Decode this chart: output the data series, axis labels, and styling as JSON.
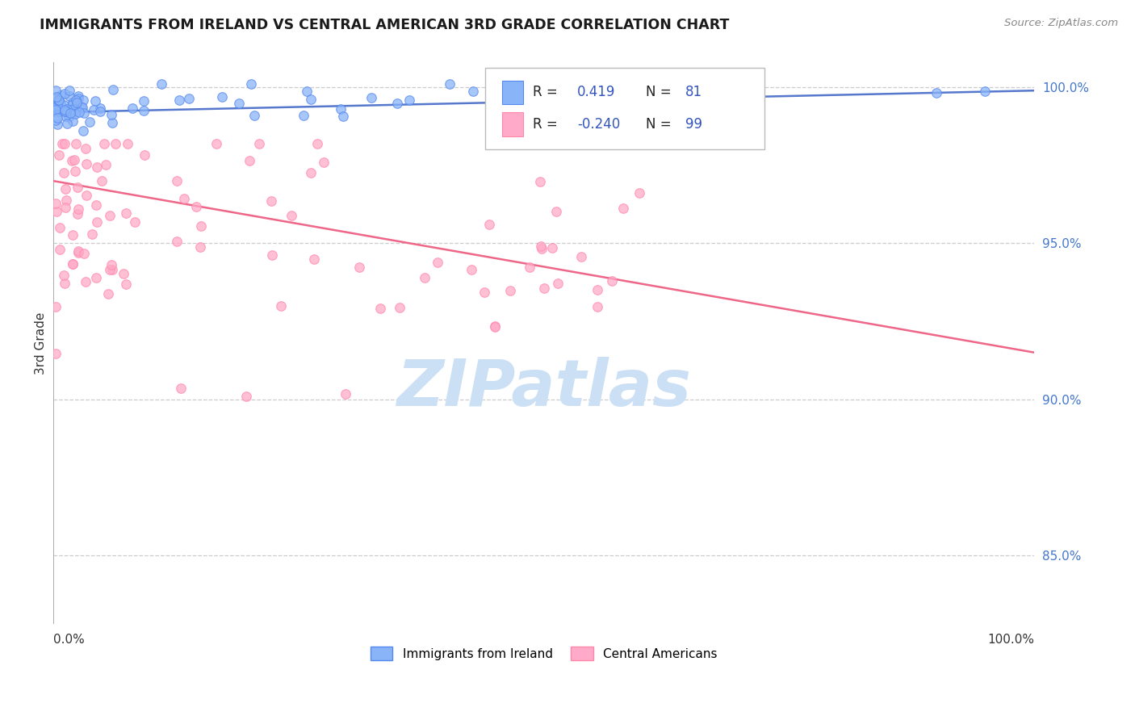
{
  "title": "IMMIGRANTS FROM IRELAND VS CENTRAL AMERICAN 3RD GRADE CORRELATION CHART",
  "source_text": "Source: ZipAtlas.com",
  "ylabel": "3rd Grade",
  "y_tick_labels": [
    "85.0%",
    "90.0%",
    "95.0%",
    "100.0%"
  ],
  "y_tick_values": [
    0.85,
    0.9,
    0.95,
    1.0
  ],
  "x_lim": [
    0.0,
    1.0
  ],
  "y_lim": [
    0.828,
    1.008
  ],
  "color_ireland": "#8ab4f8",
  "color_ireland_edge": "#5588ee",
  "color_central": "#ffaac8",
  "color_central_edge": "#ff88aa",
  "color_trendline_ireland": "#5577cc",
  "color_trendline_central": "#ee6688",
  "color_grid": "#cccccc",
  "color_right_labels": "#4477cc",
  "color_legend_text_dark": "#333333",
  "color_legend_values": "#3355bb",
  "watermark_color": "#cce0f5",
  "ireland_trend_x0": 0.0,
  "ireland_trend_y0": 0.992,
  "ireland_trend_x1": 1.0,
  "ireland_trend_y1": 0.999,
  "central_trend_x0": 0.0,
  "central_trend_y0": 0.97,
  "central_trend_x1": 1.0,
  "central_trend_y1": 0.915
}
